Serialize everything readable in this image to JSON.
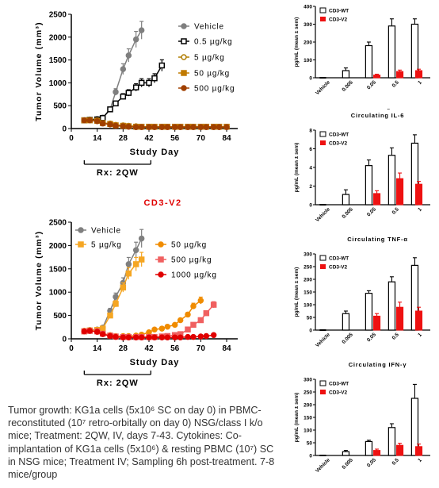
{
  "chart_data": [
    {
      "type": "line",
      "ylabel": "Tumor Volume (mm³)",
      "xlabel": "Study Day",
      "annotation": "Rx: 2QW",
      "xticks": [
        0,
        14,
        28,
        42,
        56,
        70,
        84
      ],
      "yticks": [
        0,
        500,
        1000,
        1500,
        2000,
        2500
      ],
      "xlim": [
        0,
        90
      ],
      "ylim": [
        0,
        2500
      ],
      "legend_placement": "top-right",
      "series": [
        {
          "name": "Vehicle",
          "color": "#7f7f7f",
          "marker": "circle",
          "filled": true,
          "x": [
            7,
            10,
            14,
            17,
            21,
            24,
            28,
            31,
            35,
            38
          ],
          "y": [
            180,
            200,
            210,
            240,
            420,
            800,
            1300,
            1600,
            1950,
            2150
          ]
        },
        {
          "name": "0.5 µg/kg",
          "color": "#000000",
          "marker": "square",
          "filled": false,
          "x": [
            7,
            10,
            14,
            17,
            21,
            24,
            28,
            31,
            35,
            38,
            42,
            45,
            49
          ],
          "y": [
            180,
            190,
            200,
            230,
            420,
            550,
            700,
            780,
            900,
            1000,
            1000,
            1100,
            1380
          ]
        },
        {
          "name": "5 µg/kg",
          "color": "#b07d00",
          "marker": "circle",
          "filled": false,
          "x": [
            7,
            10,
            14,
            17,
            21,
            24,
            28,
            31,
            35,
            38,
            42,
            45,
            49,
            52,
            56,
            59,
            63,
            66,
            70,
            73,
            77,
            80,
            84
          ],
          "y": [
            180,
            190,
            180,
            120,
            110,
            80,
            70,
            60,
            50,
            40,
            40,
            40,
            40,
            40,
            40,
            40,
            40,
            40,
            40,
            40,
            40,
            40,
            40
          ]
        },
        {
          "name": "50 µg/kg",
          "color": "#c07a00",
          "marker": "square",
          "filled": true,
          "x": [
            7,
            10,
            14,
            17,
            21,
            24,
            28,
            31,
            35,
            38,
            42,
            45,
            49,
            52,
            56,
            59,
            63,
            66,
            70,
            73,
            77,
            80,
            84
          ],
          "y": [
            180,
            180,
            170,
            120,
            100,
            70,
            60,
            50,
            40,
            40,
            40,
            40,
            40,
            40,
            40,
            40,
            40,
            40,
            40,
            40,
            40,
            40,
            40
          ]
        },
        {
          "name": "500 µg/kg",
          "color": "#a04000",
          "marker": "circle",
          "filled": true,
          "x": [
            7,
            10,
            14,
            17,
            21,
            24,
            28,
            31,
            35,
            38,
            42,
            45,
            49,
            52,
            56,
            59,
            63,
            66,
            70,
            73,
            77,
            80,
            84
          ],
          "y": [
            180,
            180,
            160,
            110,
            90,
            60,
            50,
            40,
            30,
            30,
            30,
            30,
            30,
            30,
            30,
            30,
            30,
            30,
            30,
            30,
            30,
            30,
            30
          ]
        }
      ]
    },
    {
      "type": "line",
      "title": "CD3-V2",
      "ylabel": "Tumor Volume (mm³)",
      "xlabel": "Study Day",
      "annotation": "Rx: 2QW",
      "xticks": [
        0,
        14,
        28,
        42,
        56,
        70,
        84
      ],
      "yticks": [
        0,
        500,
        1000,
        1500,
        2000,
        2500
      ],
      "xlim": [
        0,
        90
      ],
      "ylim": [
        0,
        2500
      ],
      "series": [
        {
          "name": "Vehicle",
          "color": "#7f7f7f",
          "marker": "circle",
          "filled": true,
          "x": [
            7,
            10,
            14,
            17,
            21,
            24,
            28,
            31,
            35,
            38
          ],
          "y": [
            170,
            190,
            200,
            240,
            600,
            900,
            1200,
            1600,
            1900,
            2150
          ]
        },
        {
          "name": "5 µg/kg",
          "color": "#f5a623",
          "marker": "square",
          "filled": true,
          "x": [
            7,
            10,
            14,
            17,
            21,
            24,
            28,
            31,
            35,
            38
          ],
          "y": [
            160,
            180,
            190,
            220,
            500,
            750,
            1100,
            1400,
            1600,
            1700
          ]
        },
        {
          "name": "50 µg/kg",
          "color": "#f08c00",
          "marker": "circle",
          "filled": true,
          "x": [
            7,
            10,
            14,
            17,
            21,
            24,
            28,
            31,
            35,
            38,
            42,
            45,
            49,
            52,
            56,
            59,
            63,
            66,
            70
          ],
          "y": [
            170,
            180,
            170,
            110,
            80,
            60,
            60,
            60,
            70,
            90,
            140,
            200,
            220,
            260,
            300,
            400,
            520,
            700,
            820
          ]
        },
        {
          "name": "500 µg/kg",
          "color": "#f06060",
          "marker": "square",
          "filled": true,
          "x": [
            7,
            10,
            14,
            17,
            21,
            24,
            28,
            31,
            35,
            38,
            42,
            45,
            49,
            52,
            56,
            59,
            63,
            66,
            70,
            73,
            77
          ],
          "y": [
            160,
            170,
            160,
            110,
            70,
            50,
            40,
            40,
            40,
            40,
            40,
            40,
            50,
            60,
            80,
            100,
            200,
            300,
            400,
            550,
            730
          ]
        },
        {
          "name": "1000 µg/kg",
          "color": "#e00000",
          "marker": "circle",
          "filled": true,
          "x": [
            7,
            10,
            14,
            17,
            21,
            24,
            28,
            31,
            35,
            38,
            42,
            45,
            49,
            52,
            56,
            59,
            63,
            66,
            70,
            73,
            77
          ],
          "y": [
            160,
            170,
            150,
            100,
            60,
            40,
            30,
            30,
            30,
            30,
            30,
            30,
            30,
            30,
            30,
            30,
            40,
            40,
            50,
            60,
            80
          ]
        }
      ]
    },
    {
      "type": "bar",
      "ylabel": "pg/mL (mean ± sem)",
      "xlabel": "mg/kg",
      "categories": [
        "Vehicle",
        "0.005",
        "0.05",
        "0.5",
        "1"
      ],
      "ylim": [
        0,
        400
      ],
      "yticks": [
        0,
        100,
        200,
        300,
        400
      ],
      "series": [
        {
          "name": "CD3-WT",
          "color": "#ffffff",
          "values": [
            0,
            40,
            180,
            290,
            300
          ],
          "errors": [
            0,
            15,
            20,
            40,
            30
          ]
        },
        {
          "name": "CD3-V2",
          "color": "#ee1111",
          "values": [
            0,
            0,
            15,
            35,
            35
          ],
          "errors": [
            0,
            0,
            5,
            8,
            8
          ],
          "extra_1": 40
        }
      ]
    },
    {
      "type": "bar",
      "title": "Circulating IL-6",
      "ylabel": "pg/mL (mean ± sem)",
      "xlabel": "mg/kg",
      "categories": [
        "Vehicle",
        "0.005",
        "0.05",
        "0.5",
        "1"
      ],
      "ylim": [
        0,
        8
      ],
      "yticks": [
        0,
        2,
        4,
        6,
        8
      ],
      "series": [
        {
          "name": "CD3-WT",
          "color": "#ffffff",
          "values": [
            0,
            1.1,
            4.2,
            5.3,
            6.6
          ],
          "errors": [
            0,
            0.5,
            0.6,
            0.8,
            0.9
          ]
        },
        {
          "name": "CD3-V2",
          "color": "#ee1111",
          "values": [
            0,
            0,
            1.2,
            2.8,
            1.4
          ],
          "errors": [
            0,
            0,
            0.3,
            0.6,
            0.3
          ],
          "extra_1": 2.2
        }
      ]
    },
    {
      "type": "bar",
      "title": "Circulating TNF-α",
      "ylabel": "pg/mL (mean ± sem)",
      "xlabel": "mg/kg",
      "categories": [
        "Vehicle",
        "0.005",
        "0.05",
        "0.5",
        "1"
      ],
      "ylim": [
        0,
        300
      ],
      "yticks": [
        0,
        50,
        100,
        150,
        200,
        250,
        300
      ],
      "series": [
        {
          "name": "CD3-WT",
          "color": "#ffffff",
          "values": [
            0,
            65,
            145,
            190,
            255
          ],
          "errors": [
            0,
            10,
            10,
            20,
            30
          ]
        },
        {
          "name": "CD3-V2",
          "color": "#ee1111",
          "values": [
            0,
            0,
            55,
            90,
            70
          ],
          "errors": [
            0,
            0,
            10,
            20,
            15
          ],
          "extra_1": 75
        }
      ]
    },
    {
      "type": "bar",
      "title": "Circulating IFN-γ",
      "ylabel": "pg/mL (mean ± sem)",
      "xlabel": "mg/kg",
      "categories": [
        "Vehicle",
        "0.005",
        "0.05",
        "0.5",
        "1"
      ],
      "ylim": [
        0,
        300
      ],
      "yticks": [
        0,
        50,
        100,
        150,
        200,
        250,
        300
      ],
      "series": [
        {
          "name": "CD3-WT",
          "color": "#ffffff",
          "values": [
            0,
            15,
            55,
            110,
            225
          ],
          "errors": [
            0,
            5,
            5,
            15,
            55
          ]
        },
        {
          "name": "CD3-V2",
          "color": "#ee1111",
          "values": [
            0,
            0,
            20,
            40,
            40
          ],
          "errors": [
            0,
            0,
            5,
            8,
            10
          ],
          "extra_1": 35
        }
      ]
    }
  ],
  "caption": "Tumor growth: KG1a cells (5x10⁶ SC on day 0) in PBMC-reconstituted (10⁷ retro-orbitally on day 0) NSG/class I k/o mice; Treatment: 2QW, IV, days 7-43. Cytokines: Co-implantation of KG1a cells (5x10⁶) & resting PBMC (10⁷) SC in NSG mice; Treatment IV; Sampling 6h post-treatment. 7-8 mice/group"
}
